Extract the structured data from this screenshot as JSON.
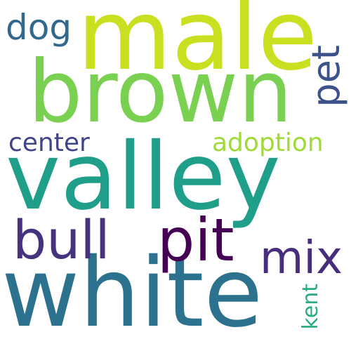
{
  "words": [
    {
      "text": "male",
      "color": "#c8e020"
    },
    {
      "text": "brown",
      "color": "#7ad151"
    },
    {
      "text": "valley",
      "color": "#1f9e89"
    },
    {
      "text": "white",
      "color": "#2c728e"
    },
    {
      "text": "dog",
      "color": "#31688e"
    },
    {
      "text": "pet",
      "color": "#3b528b"
    },
    {
      "text": "center",
      "color": "#414487"
    },
    {
      "text": "adoption",
      "color": "#a0da39"
    },
    {
      "text": "bull",
      "color": "#46337e"
    },
    {
      "text": "pit",
      "color": "#440154"
    },
    {
      "text": "mix",
      "color": "#472d7b"
    },
    {
      "text": "kent",
      "color": "#27ad81"
    }
  ]
}
